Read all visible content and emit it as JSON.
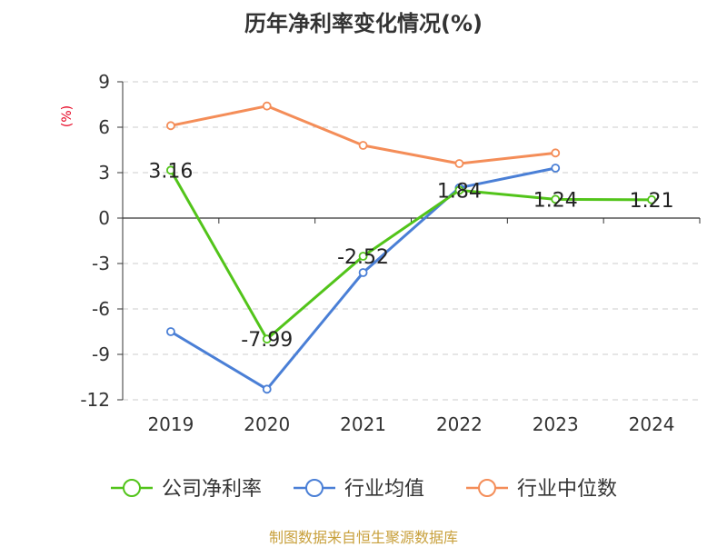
{
  "chart_data": {
    "type": "line",
    "title": "历年净利率变化情况(%)",
    "ylabel": "(%)",
    "categories": [
      "2019",
      "2020",
      "2021",
      "2022",
      "2023",
      "2024"
    ],
    "yticks": [
      "9",
      "6",
      "3",
      "0",
      "-3",
      "-6",
      "-9",
      "-12"
    ],
    "ylim": [
      -12,
      9
    ],
    "grid": true,
    "legend_position": "bottom",
    "series": [
      {
        "name": "公司净利率",
        "color": "#52c41a",
        "values": [
          3.16,
          -7.99,
          -2.52,
          1.84,
          1.24,
          1.21
        ],
        "labels": [
          "3.16",
          "-7.99",
          "-2.52",
          "1.84",
          "1.24",
          "1.21"
        ]
      },
      {
        "name": "行业均值",
        "color": "#4a7fd6",
        "values": [
          -7.5,
          -11.3,
          -3.6,
          2.0,
          3.3,
          null
        ]
      },
      {
        "name": "行业中位数",
        "color": "#f48d58",
        "values": [
          6.1,
          7.4,
          4.8,
          3.6,
          4.3,
          null
        ]
      }
    ]
  },
  "source_text": "制图数据来自恒生聚源数据库"
}
